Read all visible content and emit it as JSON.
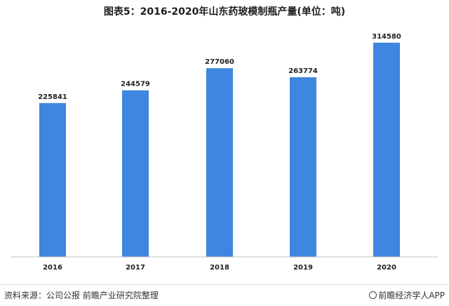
{
  "chart_data": {
    "type": "bar",
    "title": "图表5：2016-2020年山东药玻模制瓶产量(单位：吨)",
    "categories": [
      "2016",
      "2017",
      "2018",
      "2019",
      "2020"
    ],
    "values": [
      225841,
      244579,
      277060,
      263774,
      314580
    ],
    "value_labels": [
      "225841",
      "244579",
      "277060",
      "263774",
      "314580"
    ],
    "ylim": [
      0,
      336000
    ],
    "bar_color": "#3e86df",
    "grid": false,
    "legend": "none"
  },
  "footer": {
    "source": "资料来源：公司公报 前瞻产业研究院整理",
    "brand": "前瞻经济学人APP",
    "brand_icon": "at-sign-icon"
  }
}
